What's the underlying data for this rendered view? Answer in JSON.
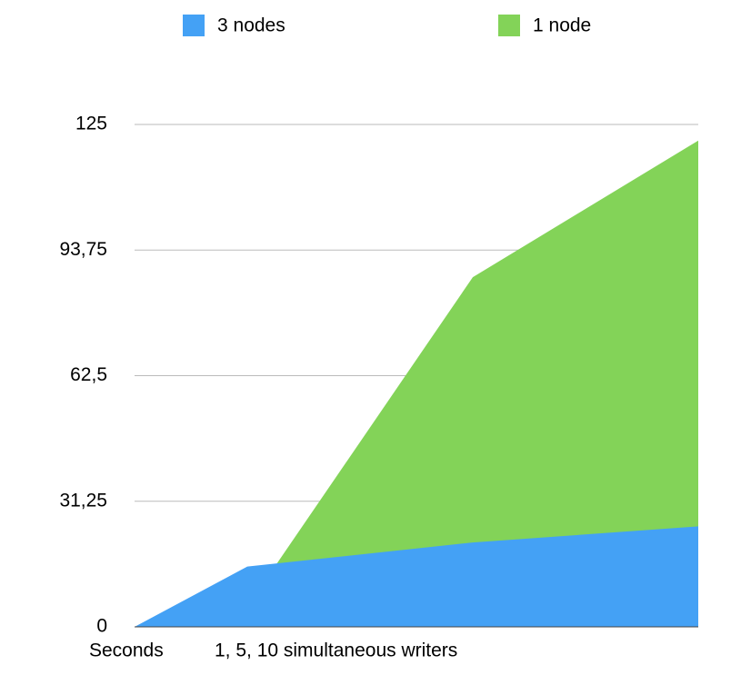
{
  "chart_data": {
    "type": "area",
    "x": [
      0,
      1,
      3,
      5
    ],
    "xlim": [
      0,
      5
    ],
    "series": [
      {
        "name": "3 nodes",
        "color": "#44a1f5",
        "values": [
          0,
          15,
          21,
          25
        ]
      },
      {
        "name": "1 node",
        "color": "#83d358",
        "values": [
          0,
          5,
          87,
          121
        ]
      }
    ],
    "ylim": [
      0,
      125
    ],
    "yticks": [
      0,
      {
        "value": 31.25,
        "label": "31,25"
      },
      {
        "value": 62.5,
        "label": "62,5"
      },
      {
        "value": 93.75,
        "label": "93,75"
      },
      125
    ],
    "ylabel": "Seconds",
    "xlabel": "1, 5, 10 simultaneous writers",
    "grid": true,
    "legend": "top"
  }
}
